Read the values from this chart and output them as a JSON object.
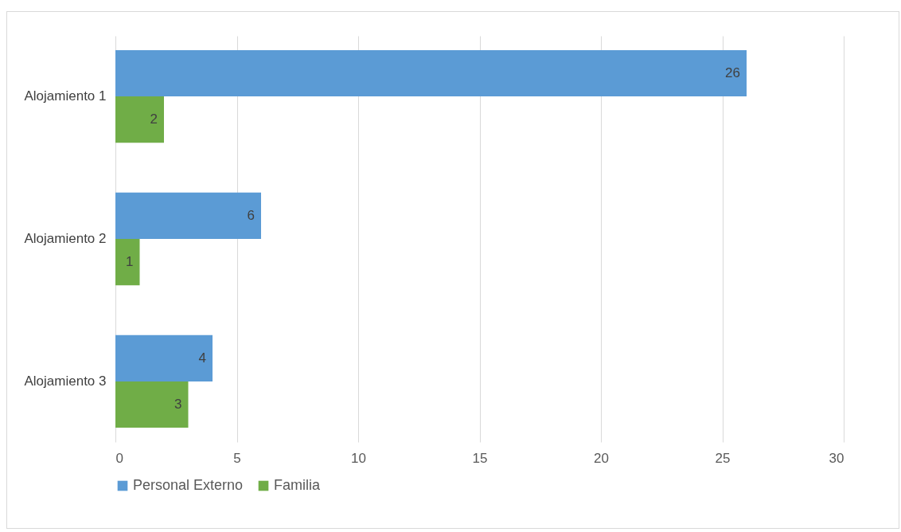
{
  "chart_data": {
    "type": "bar",
    "orientation": "horizontal",
    "categories": [
      "Alojamiento 1",
      "Alojamiento 2",
      "Alojamiento 3"
    ],
    "series": [
      {
        "name": "Personal Externo",
        "color": "#5b9bd5",
        "values": [
          26,
          6,
          4
        ]
      },
      {
        "name": "Familia",
        "color": "#70ad47",
        "values": [
          2,
          1,
          3
        ]
      }
    ],
    "xlim": [
      0,
      30
    ],
    "xticks": [
      0,
      5,
      10,
      15,
      20,
      25,
      30
    ],
    "grid": "x",
    "legend": "bottom",
    "data_labels": true
  }
}
